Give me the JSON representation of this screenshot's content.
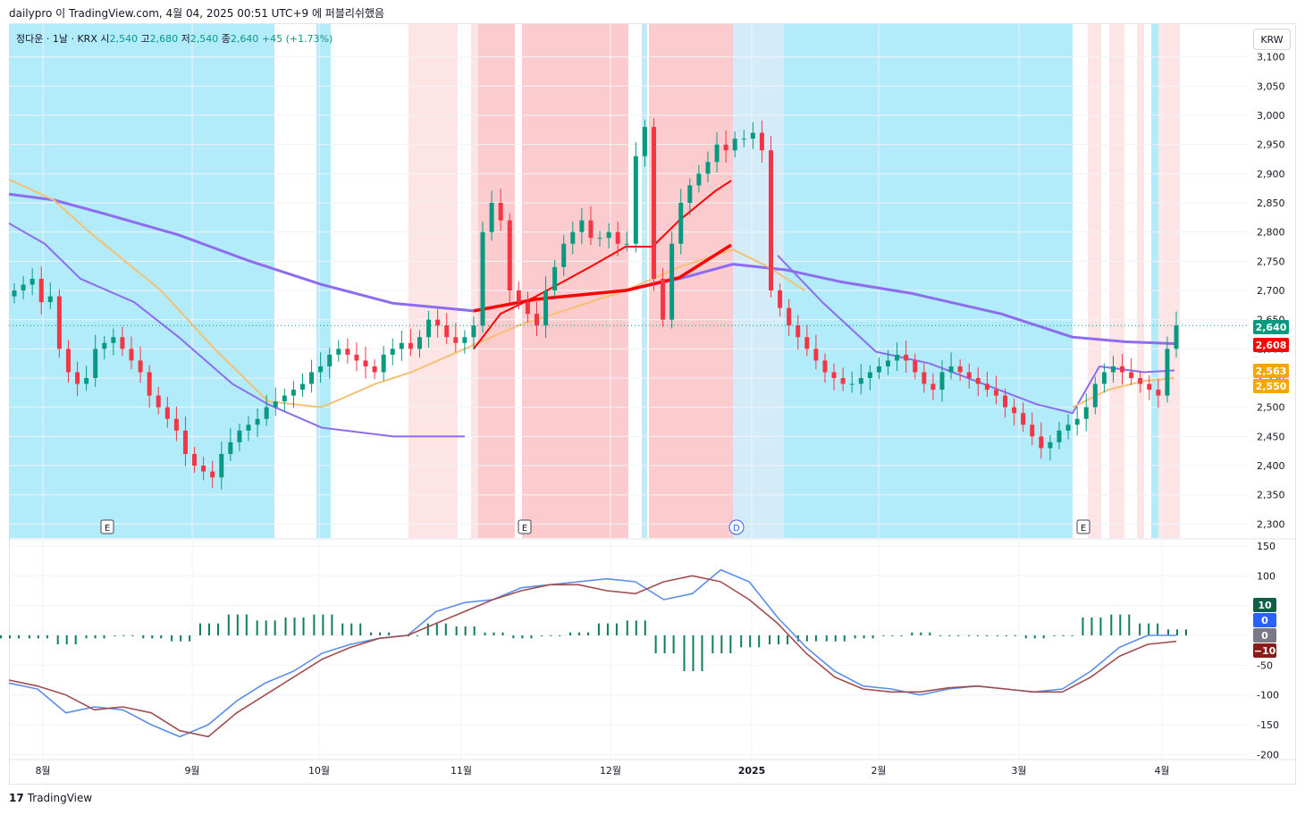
{
  "caption": "dailypro 이 TradingView.com, 4월 04, 2025 00:51 UTC+9 에 퍼블리쉬했음",
  "legend": {
    "symbol": "정다운 · 1날 · KRX",
    "open_label": "시",
    "open": "2,540",
    "high_label": "고",
    "high": "2,680",
    "low_label": "저",
    "low": "2,540",
    "close_label": "종",
    "close": "2,640",
    "change": "+45 (+1.73%)"
  },
  "currency_button": "KRW",
  "footer_brand": "TradingView",
  "footer_logo": "17",
  "colors": {
    "up": "#089981",
    "down": "#f23645",
    "sma_long": "#8e6cef",
    "sma_mid": "#8e6cef",
    "ema_orange": "#f5c073",
    "red_line": "#ff0000",
    "macd": "#5b8def",
    "signal": "#a04d4d",
    "bg_blue": "#aeeafb",
    "bg_red": "#fccbcd"
  },
  "chart_data": [
    {
      "type": "candlestick",
      "title": "정다운 · 1날 · KRX",
      "y_ticks": [
        "3,100",
        "3,050",
        "3,000",
        "2,950",
        "2,900",
        "2,850",
        "2,800",
        "2,750",
        "2,700",
        "2,650",
        "2,600",
        "2,550",
        "2,500",
        "2,450",
        "2,400",
        "2,350",
        "2,300"
      ],
      "ylim": [
        2275,
        3110
      ],
      "x_ticks": [
        "8월",
        "9월",
        "10월",
        "11월",
        "12월",
        "2025",
        "2월",
        "3월",
        "4월"
      ],
      "earnings_markers": [
        "E",
        "E",
        "D",
        "E"
      ],
      "price_labels": [
        {
          "value": "2,640",
          "color": "#089981"
        },
        {
          "value": "2,608",
          "color": "#ff0000"
        },
        {
          "value": "2,563",
          "color": "#f7a600"
        },
        {
          "value": "2,550",
          "color": "#f7a600"
        }
      ],
      "last_price": 2640
    },
    {
      "type": "line",
      "title": "MACD",
      "y_ticks": [
        "150",
        "100",
        "50",
        "0",
        "-50",
        "-100",
        "-150",
        "-200"
      ],
      "ylim": [
        -200,
        150
      ],
      "value_labels": [
        {
          "value": "10",
          "color": "#0e5e4a"
        },
        {
          "value": "0",
          "color": "#2962ff"
        },
        {
          "value": "0",
          "color": "#787b86"
        },
        {
          "value": "−10",
          "color": "#8b1a1a"
        }
      ],
      "series": [
        {
          "values": [
            -80,
            -90,
            -130,
            -120,
            -125,
            -150,
            -170,
            -150,
            -110,
            -80,
            -60,
            -30,
            -15,
            -5,
            0,
            40,
            55,
            60,
            80,
            85,
            90,
            95,
            90,
            60,
            70,
            110,
            90,
            30,
            -20,
            -60,
            -85,
            -90,
            -100,
            -90,
            -85,
            -90,
            -95,
            -90,
            -60,
            -20,
            0,
            0
          ]
        },
        {
          "values": [
            -75,
            -85,
            -100,
            -125,
            -120,
            -130,
            -160,
            -170,
            -130,
            -100,
            -70,
            -40,
            -20,
            -5,
            0,
            20,
            40,
            60,
            75,
            85,
            85,
            75,
            70,
            90,
            100,
            90,
            60,
            20,
            -30,
            -70,
            -90,
            -95,
            -95,
            -88,
            -85,
            -90,
            -95,
            -95,
            -70,
            -35,
            -15,
            -10
          ]
        },
        {
          "values": [
            -5,
            -5,
            -15,
            -5,
            0,
            -5,
            -10,
            20,
            35,
            25,
            30,
            35,
            20,
            5,
            0,
            20,
            15,
            5,
            -5,
            0,
            5,
            20,
            25,
            -30,
            -60,
            -30,
            -20,
            -15,
            -10,
            -10,
            -5,
            0,
            5,
            0,
            0,
            0,
            -5,
            0,
            30,
            35,
            20,
            10
          ]
        }
      ]
    }
  ]
}
